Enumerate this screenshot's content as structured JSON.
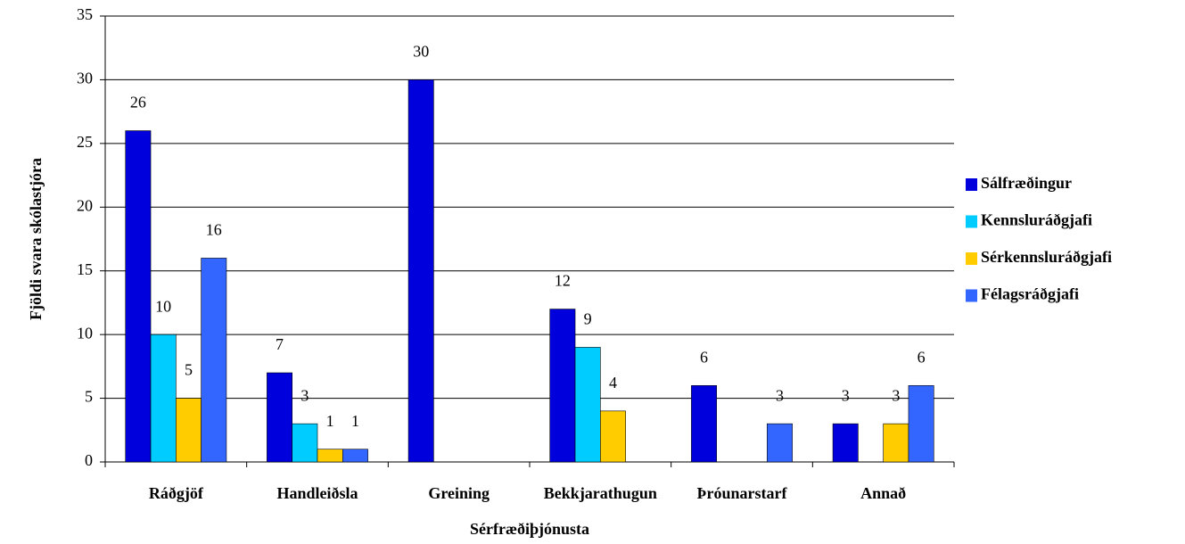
{
  "chart_data": {
    "type": "bar",
    "categories": [
      "Ráðgjöf",
      "Handleiðsla",
      "Greining",
      "Bekkjarathugun",
      "Þróunarstarf",
      "Annað"
    ],
    "series": [
      {
        "name": "Sálfræðingur",
        "color": "#0000dd",
        "values": [
          26,
          7,
          30,
          12,
          6,
          3
        ]
      },
      {
        "name": "Kennsluráðgjafi",
        "color": "#00ccff",
        "values": [
          10,
          3,
          null,
          9,
          null,
          null
        ]
      },
      {
        "name": "Sérkennsluráðgjafi",
        "color": "#ffcc00",
        "values": [
          5,
          1,
          null,
          4,
          null,
          3
        ]
      },
      {
        "name": "Félagsráðgjafi",
        "color": "#3366ff",
        "values": [
          16,
          1,
          null,
          null,
          3,
          6
        ]
      }
    ],
    "ylim": [
      0,
      35
    ],
    "yticks": [
      0,
      5,
      10,
      15,
      20,
      25,
      30,
      35
    ],
    "grid": true,
    "x_label": "Sérfræðiþjónusta",
    "y_label": "Fjöldi svara skólastjóra",
    "legend": "right"
  }
}
